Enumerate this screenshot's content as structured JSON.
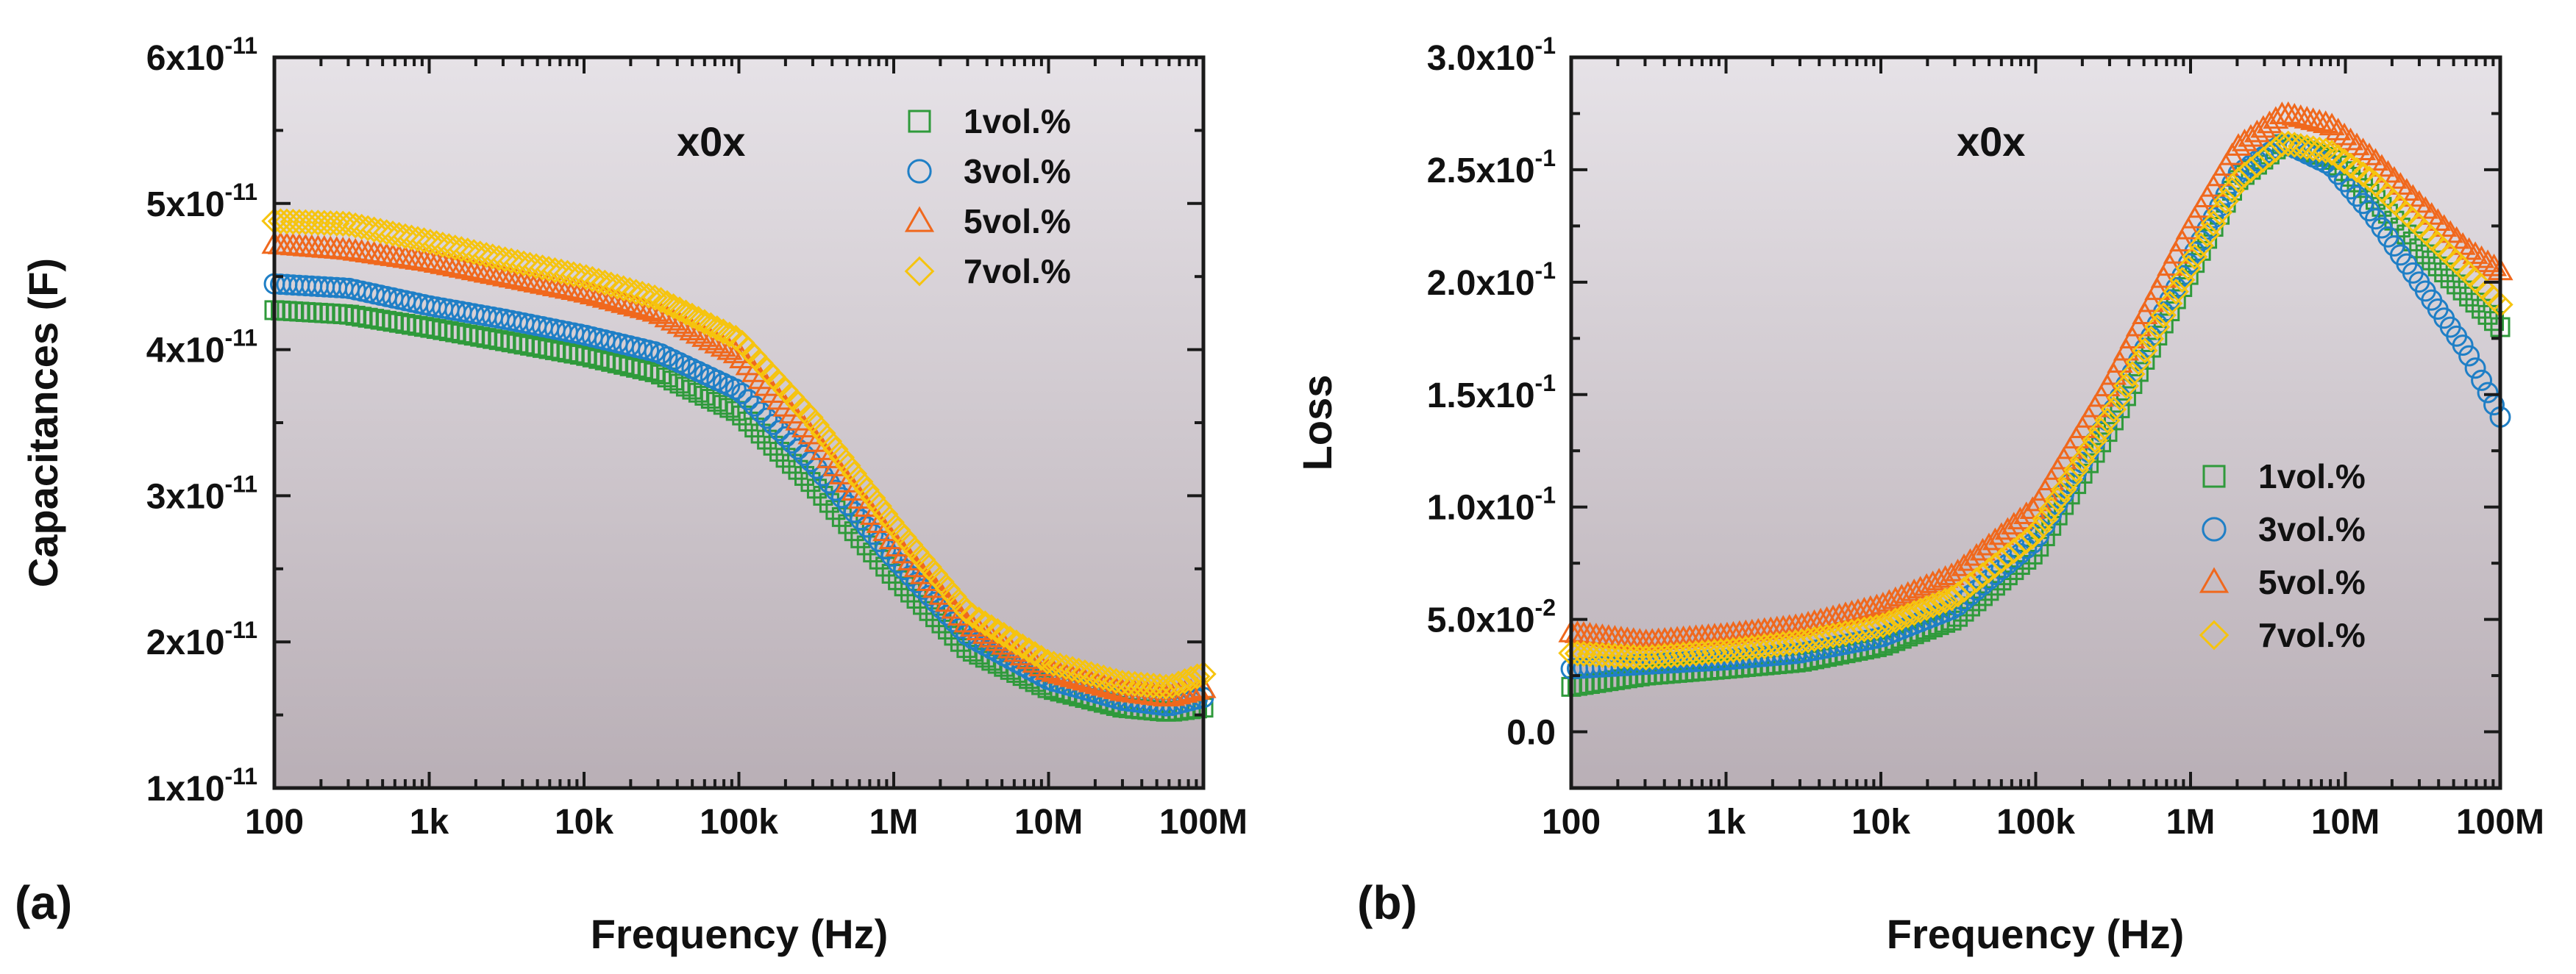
{
  "colors": {
    "plot_bg_top": "#e6e2e7",
    "plot_bg_bottom": "#b9afb6",
    "axis": "#1a1a1a",
    "series": [
      "#2f9a3b",
      "#1f7fc6",
      "#f0681d",
      "#f6c40e"
    ]
  },
  "panel_labels": [
    "(a)",
    "(b)"
  ],
  "chart_data": [
    {
      "type": "scatter",
      "panel": "(a)",
      "annotation": "x0x",
      "xlabel": "Frequency (Hz)",
      "ylabel": "Capacitances (F)",
      "xscale": "log",
      "xlim": [
        100,
        100000000
      ],
      "ylim": [
        1e-11,
        6e-11
      ],
      "xticks": [
        100,
        1000,
        10000,
        100000,
        1000000,
        10000000,
        100000000
      ],
      "xtick_labels": [
        "100",
        "1k",
        "10k",
        "100k",
        "1M",
        "10M",
        "100M"
      ],
      "yticks": [
        1e-11,
        2e-11,
        3e-11,
        4e-11,
        5e-11,
        6e-11
      ],
      "ytick_labels": [
        {
          "mant": "1x10",
          "exp": "-11"
        },
        {
          "mant": "2x10",
          "exp": "-11"
        },
        {
          "mant": "3x10",
          "exp": "-11"
        },
        {
          "mant": "4x10",
          "exp": "-11"
        },
        {
          "mant": "5x10",
          "exp": "-11"
        },
        {
          "mant": "6x10",
          "exp": "-11"
        }
      ],
      "legend_position": "top-right",
      "series": [
        {
          "name": "1vol.%",
          "marker": "square",
          "x": [
            100,
            300,
            1000,
            3000,
            10000,
            30000,
            100000,
            300000,
            1000000,
            3000000,
            10000000,
            30000000,
            60000000,
            100000000
          ],
          "y": [
            4.27e-11,
            4.24e-11,
            4.15e-11,
            4.06e-11,
            3.96e-11,
            3.84e-11,
            3.57e-11,
            3.08e-11,
            2.45e-11,
            1.95e-11,
            1.68e-11,
            1.55e-11,
            1.52e-11,
            1.55e-11
          ]
        },
        {
          "name": "3vol.%",
          "marker": "circle",
          "x": [
            100,
            300,
            1000,
            3000,
            10000,
            30000,
            100000,
            300000,
            1000000,
            3000000,
            10000000,
            30000000,
            60000000,
            100000000
          ],
          "y": [
            4.45e-11,
            4.42e-11,
            4.3e-11,
            4.21e-11,
            4.1e-11,
            3.98e-11,
            3.72e-11,
            3.22e-11,
            2.57e-11,
            2.04e-11,
            1.74e-11,
            1.6e-11,
            1.56e-11,
            1.62e-11
          ]
        },
        {
          "name": "5vol.%",
          "marker": "triangle",
          "x": [
            100,
            300,
            1000,
            3000,
            10000,
            30000,
            100000,
            300000,
            1000000,
            3000000,
            10000000,
            30000000,
            60000000,
            100000000
          ],
          "y": [
            4.72e-11,
            4.68e-11,
            4.6e-11,
            4.5e-11,
            4.39e-11,
            4.25e-11,
            3.96e-11,
            3.4e-11,
            2.68e-11,
            2.12e-11,
            1.8e-11,
            1.66e-11,
            1.62e-11,
            1.68e-11
          ]
        },
        {
          "name": "7vol.%",
          "marker": "diamond",
          "x": [
            100,
            300,
            1000,
            3000,
            10000,
            30000,
            100000,
            300000,
            1000000,
            3000000,
            10000000,
            30000000,
            60000000,
            100000000
          ],
          "y": [
            4.88e-11,
            4.86e-11,
            4.74e-11,
            4.62e-11,
            4.5e-11,
            4.35e-11,
            4.07e-11,
            3.52e-11,
            2.8e-11,
            2.2e-11,
            1.86e-11,
            1.72e-11,
            1.69e-11,
            1.78e-11
          ]
        }
      ]
    },
    {
      "type": "scatter",
      "panel": "(b)",
      "annotation": "x0x",
      "xlabel": "Frequency (Hz)",
      "ylabel": "Loss",
      "xscale": "log",
      "xlim": [
        100,
        100000000
      ],
      "ylim": [
        -0.025,
        0.3
      ],
      "xticks": [
        100,
        1000,
        10000,
        100000,
        1000000,
        10000000,
        100000000
      ],
      "xtick_labels": [
        "100",
        "1k",
        "10k",
        "100k",
        "1M",
        "10M",
        "100M"
      ],
      "yticks": [
        0,
        0.05,
        0.1,
        0.15,
        0.2,
        0.25,
        0.3
      ],
      "ytick_labels": [
        {
          "mant": "0.0",
          "exp": ""
        },
        {
          "mant": "5.0x10",
          "exp": "-2"
        },
        {
          "mant": "1.0x10",
          "exp": "-1"
        },
        {
          "mant": "1.5x10",
          "exp": "-1"
        },
        {
          "mant": "2.0x10",
          "exp": "-1"
        },
        {
          "mant": "2.5x10",
          "exp": "-1"
        },
        {
          "mant": "3.0x10",
          "exp": "-1"
        }
      ],
      "legend_position": "bottom-right",
      "series": [
        {
          "name": "1vol.%",
          "marker": "square",
          "x": [
            100,
            300,
            1000,
            3000,
            10000,
            30000,
            100000,
            300000,
            1000000,
            2000000,
            4000000,
            8000000,
            15000000,
            30000000,
            60000000,
            100000000
          ],
          "y": [
            0.02,
            0.025,
            0.028,
            0.031,
            0.038,
            0.05,
            0.08,
            0.135,
            0.205,
            0.245,
            0.262,
            0.255,
            0.238,
            0.215,
            0.195,
            0.18
          ]
        },
        {
          "name": "3vol.%",
          "marker": "circle",
          "x": [
            100,
            300,
            1000,
            3000,
            10000,
            30000,
            100000,
            300000,
            1000000,
            2000000,
            4000000,
            8000000,
            15000000,
            30000000,
            60000000,
            100000000
          ],
          "y": [
            0.028,
            0.03,
            0.032,
            0.035,
            0.042,
            0.055,
            0.085,
            0.14,
            0.21,
            0.248,
            0.262,
            0.252,
            0.23,
            0.2,
            0.17,
            0.14
          ]
        },
        {
          "name": "5vol.%",
          "marker": "triangle",
          "x": [
            100,
            300,
            1000,
            3000,
            10000,
            30000,
            100000,
            300000,
            1000000,
            2000000,
            4000000,
            8000000,
            15000000,
            30000000,
            60000000,
            100000000
          ],
          "y": [
            0.044,
            0.04,
            0.043,
            0.047,
            0.056,
            0.07,
            0.1,
            0.155,
            0.225,
            0.26,
            0.275,
            0.27,
            0.255,
            0.235,
            0.215,
            0.205
          ]
        },
        {
          "name": "7vol.%",
          "marker": "diamond",
          "x": [
            100,
            300,
            1000,
            3000,
            10000,
            30000,
            100000,
            300000,
            1000000,
            2000000,
            4000000,
            8000000,
            15000000,
            30000000,
            60000000,
            100000000
          ],
          "y": [
            0.035,
            0.033,
            0.036,
            0.04,
            0.047,
            0.06,
            0.088,
            0.14,
            0.208,
            0.245,
            0.262,
            0.258,
            0.245,
            0.225,
            0.205,
            0.19
          ]
        }
      ]
    }
  ]
}
